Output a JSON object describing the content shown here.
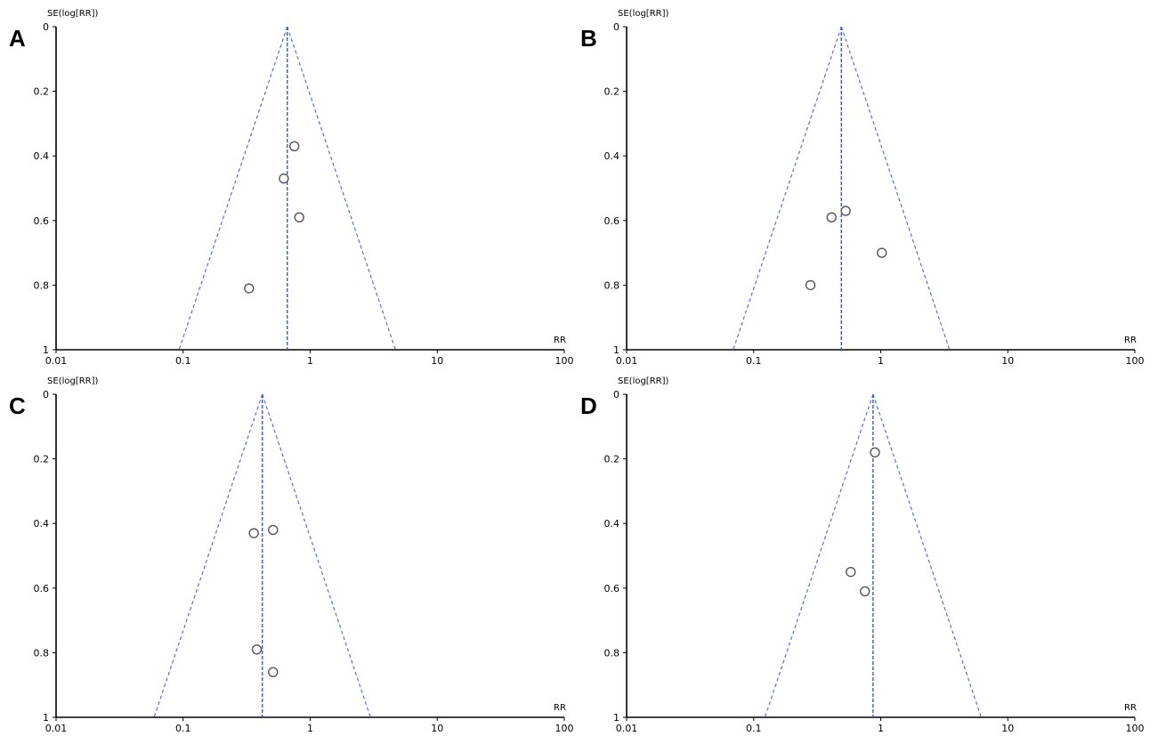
{
  "chart_data": [
    {
      "type": "scatter",
      "panel": "A",
      "title": "",
      "ylabel": "SE(log[RR])",
      "xlabel": "RR",
      "x_scale": "log",
      "xlim": [
        0.01,
        100
      ],
      "ylim": [
        0,
        1
      ],
      "y_inverted": true,
      "x_ticks": [
        "0.01",
        "0.1",
        "1",
        "10",
        "100"
      ],
      "y_ticks": [
        "0",
        "0.2",
        "0.4",
        "0.6",
        "0.8",
        "1"
      ],
      "pooled_rr": 0.66,
      "points": [
        {
          "rr": 0.75,
          "se": 0.37
        },
        {
          "rr": 0.62,
          "se": 0.47
        },
        {
          "rr": 0.82,
          "se": 0.59
        },
        {
          "rr": 0.33,
          "se": 0.81
        }
      ]
    },
    {
      "type": "scatter",
      "panel": "B",
      "title": "",
      "ylabel": "SE(log[RR])",
      "xlabel": "RR",
      "x_scale": "log",
      "xlim": [
        0.01,
        100
      ],
      "ylim": [
        0,
        1
      ],
      "y_inverted": true,
      "x_ticks": [
        "0.01",
        "0.1",
        "1",
        "10",
        "100"
      ],
      "y_ticks": [
        "0",
        "0.2",
        "0.4",
        "0.6",
        "0.8",
        "1"
      ],
      "pooled_rr": 0.49,
      "points": [
        {
          "rr": 0.53,
          "se": 0.57
        },
        {
          "rr": 0.41,
          "se": 0.59
        },
        {
          "rr": 1.02,
          "se": 0.7
        },
        {
          "rr": 0.28,
          "se": 0.8
        }
      ]
    },
    {
      "type": "scatter",
      "panel": "C",
      "title": "",
      "ylabel": "SE(log[RR])",
      "xlabel": "RR",
      "x_scale": "log",
      "xlim": [
        0.01,
        100
      ],
      "ylim": [
        0,
        1
      ],
      "y_inverted": true,
      "x_ticks": [
        "0.01",
        "0.1",
        "1",
        "10",
        "100"
      ],
      "y_ticks": [
        "0",
        "0.2",
        "0.4",
        "0.6",
        "0.8",
        "1"
      ],
      "pooled_rr": 0.42,
      "points": [
        {
          "rr": 0.51,
          "se": 0.42
        },
        {
          "rr": 0.36,
          "se": 0.43
        },
        {
          "rr": 0.38,
          "se": 0.79
        },
        {
          "rr": 0.51,
          "se": 0.86
        }
      ]
    },
    {
      "type": "scatter",
      "panel": "D",
      "title": "",
      "ylabel": "SE(log[RR])",
      "xlabel": "RR",
      "x_scale": "log",
      "xlim": [
        0.01,
        100
      ],
      "ylim": [
        0,
        1
      ],
      "y_inverted": true,
      "x_ticks": [
        "0.01",
        "0.1",
        "1",
        "10",
        "100"
      ],
      "y_ticks": [
        "0",
        "0.2",
        "0.4",
        "0.6",
        "0.8",
        "1"
      ],
      "pooled_rr": 0.87,
      "points": [
        {
          "rr": 0.9,
          "se": 0.18
        },
        {
          "rr": 0.58,
          "se": 0.55
        },
        {
          "rr": 0.75,
          "se": 0.61
        }
      ]
    }
  ]
}
